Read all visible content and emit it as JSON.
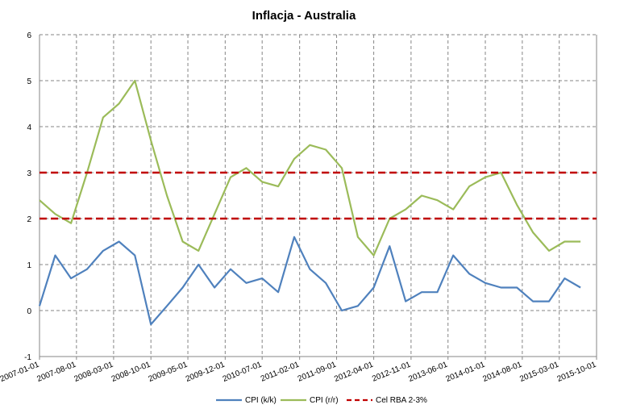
{
  "chart_data": {
    "type": "line",
    "title": "Inflacja - Australia",
    "xlabel": "",
    "ylabel": "",
    "ylim": [
      -1,
      6
    ],
    "yticks": [
      -1,
      0,
      1,
      2,
      3,
      4,
      5,
      6
    ],
    "xticks": [
      "2007-01-01",
      "2007-08-01",
      "2008-03-01",
      "2008-10-01",
      "2009-05-01",
      "2009-12-01",
      "2010-07-01",
      "2011-02-01",
      "2011-09-01",
      "2012-04-01",
      "2012-11-01",
      "2013-06-01",
      "2014-01-01",
      "2014-08-01",
      "2015-03-01",
      "2015-10-01"
    ],
    "x_range": [
      "2007-01-01",
      "2015-10-01"
    ],
    "grid": true,
    "legend_position": "bottom",
    "x": [
      "2007-01-01",
      "2007-04-01",
      "2007-07-01",
      "2007-10-01",
      "2008-01-01",
      "2008-04-01",
      "2008-07-01",
      "2008-10-01",
      "2009-01-01",
      "2009-04-01",
      "2009-07-01",
      "2009-10-01",
      "2010-01-01",
      "2010-04-01",
      "2010-07-01",
      "2010-10-01",
      "2011-01-01",
      "2011-04-01",
      "2011-07-01",
      "2011-10-01",
      "2012-01-01",
      "2012-04-01",
      "2012-07-01",
      "2012-10-01",
      "2013-01-01",
      "2013-04-01",
      "2013-07-01",
      "2013-10-01",
      "2014-01-01",
      "2014-04-01",
      "2014-07-01",
      "2014-10-01",
      "2015-01-01",
      "2015-04-01",
      "2015-07-01"
    ],
    "series": [
      {
        "name": "CPI (k/k)",
        "color": "#4f81bd",
        "dash": "solid",
        "values": [
          0.1,
          1.2,
          0.7,
          0.9,
          1.3,
          1.5,
          1.2,
          -0.3,
          0.1,
          0.5,
          1.0,
          0.5,
          0.9,
          0.6,
          0.7,
          0.4,
          1.6,
          0.9,
          0.6,
          0.0,
          0.1,
          0.5,
          1.4,
          0.2,
          0.4,
          0.4,
          1.2,
          0.8,
          0.6,
          0.5,
          0.5,
          0.2,
          0.2,
          0.7,
          0.5
        ]
      },
      {
        "name": "CPI (r/r)",
        "color": "#9bbb59",
        "dash": "solid",
        "values": [
          2.4,
          2.1,
          1.9,
          3.0,
          4.2,
          4.5,
          5.0,
          3.7,
          2.5,
          1.5,
          1.3,
          2.1,
          2.9,
          3.1,
          2.8,
          2.7,
          3.3,
          3.6,
          3.5,
          3.1,
          1.6,
          1.2,
          2.0,
          2.2,
          2.5,
          2.4,
          2.2,
          2.7,
          2.9,
          3.0,
          2.3,
          1.7,
          1.3,
          1.5,
          1.5
        ]
      },
      {
        "name": "Cel RBA 2-3%",
        "color": "#c00000",
        "dash": "dashed",
        "bands": [
          2,
          3
        ]
      }
    ]
  }
}
